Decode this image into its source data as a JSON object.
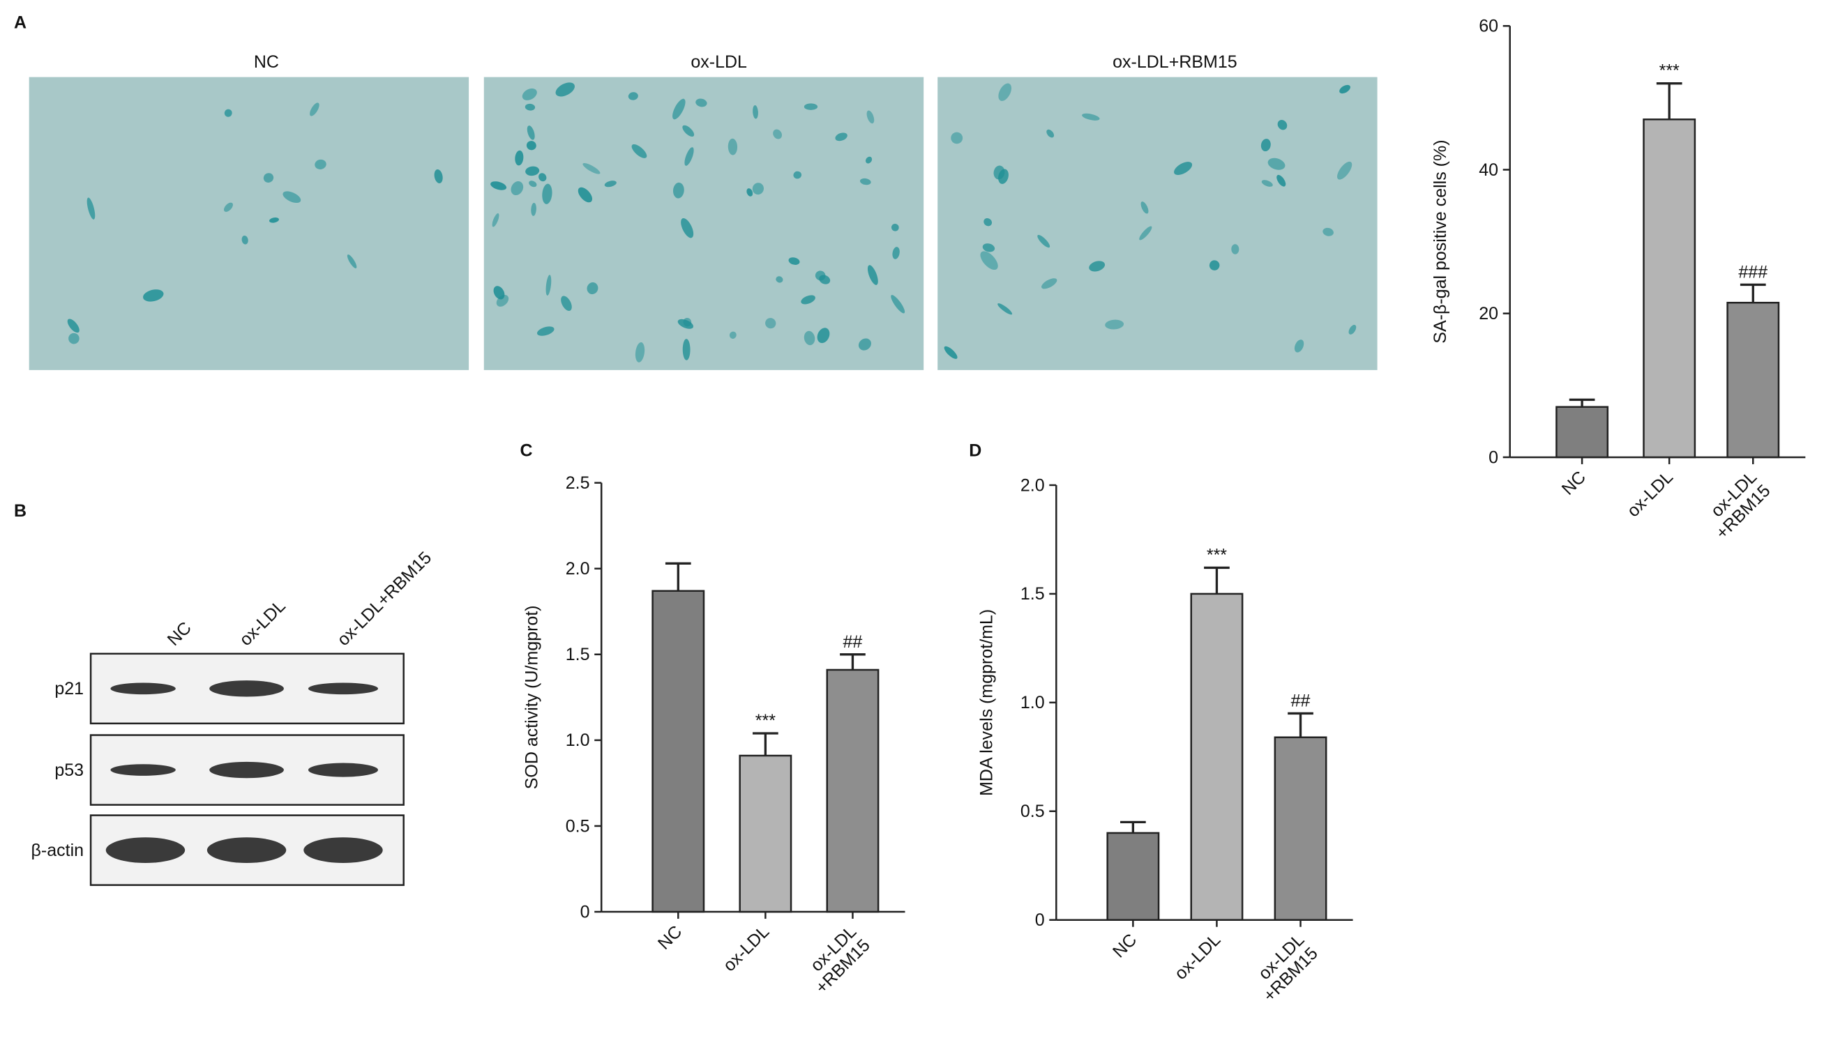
{
  "panel_labels": [
    "A",
    "B",
    "C",
    "D"
  ],
  "micrographs": {
    "titles": [
      "NC",
      "ox-LDL",
      "ox-LDL+RBM15"
    ]
  },
  "western_blot": {
    "lanes": [
      "NC",
      "ox-LDL",
      "ox-LDL+RBM15"
    ],
    "rows": [
      "p21",
      "p53",
      "β-actin"
    ]
  },
  "chart_data": [
    {
      "type": "bar",
      "y_label": "SA-β-gal positive cells (%)",
      "categories": [
        "NC",
        "ox-LDL",
        "ox-LDL\n+RBM15"
      ],
      "values": [
        7,
        47,
        21.5
      ],
      "errors": [
        1,
        5,
        2.5
      ],
      "colors": [
        "#7f7f7f",
        "#b4b4b4",
        "#8e8e8e"
      ],
      "annotations": [
        null,
        "***",
        "###"
      ],
      "ylim": [
        0,
        60
      ],
      "yticks": [
        0,
        20,
        40,
        60
      ]
    },
    {
      "type": "bar",
      "y_label": "SOD activity (U/mgprot)",
      "categories": [
        "NC",
        "ox-LDL",
        "ox-LDL\n+RBM15"
      ],
      "values": [
        1.87,
        0.91,
        1.41
      ],
      "errors": [
        0.16,
        0.13,
        0.09
      ],
      "colors": [
        "#7f7f7f",
        "#b4b4b4",
        "#8e8e8e"
      ],
      "annotations": [
        null,
        "***",
        "##"
      ],
      "ylim": [
        0,
        2.5
      ],
      "yticks": [
        0,
        0.5,
        {
          "value": 1,
          "label": "1.0"
        },
        1.5,
        {
          "value": 2,
          "label": "2.0"
        },
        2.5
      ]
    },
    {
      "type": "bar",
      "y_label": "MDA levels (mgprot/mL)",
      "categories": [
        "NC",
        "ox-LDL",
        "ox-LDL\n+RBM15"
      ],
      "values": [
        0.4,
        1.5,
        0.84
      ],
      "errors": [
        0.05,
        0.12,
        0.11
      ],
      "colors": [
        "#7f7f7f",
        "#b4b4b4",
        "#8e8e8e"
      ],
      "annotations": [
        null,
        "***",
        "##"
      ],
      "ylim": [
        0,
        2
      ],
      "yticks": [
        0,
        0.5,
        {
          "value": 1,
          "label": "1.0"
        },
        1.5,
        {
          "value": 2,
          "label": "2.0"
        }
      ]
    }
  ]
}
